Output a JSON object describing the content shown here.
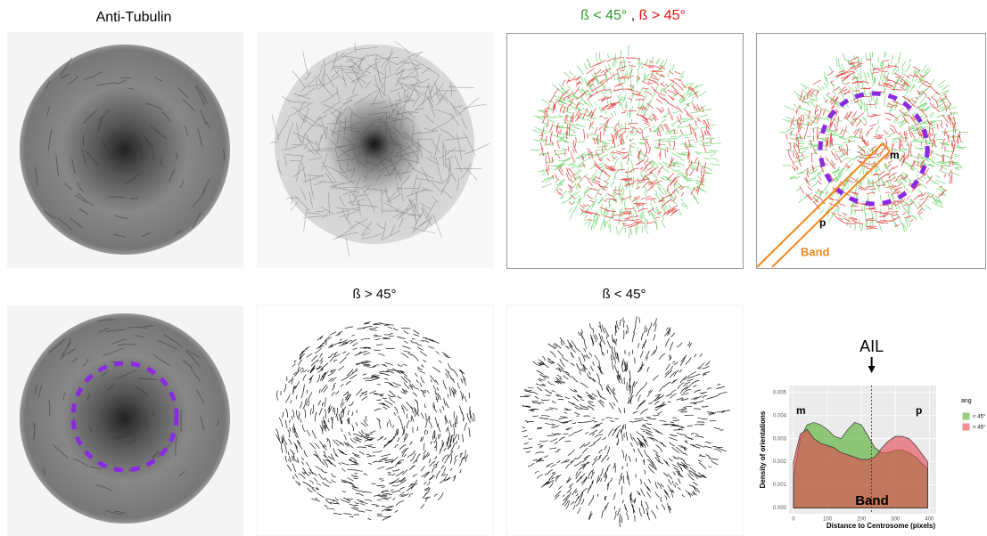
{
  "panels": {
    "anti_tubulin": "Anti-Tubulin",
    "top_title": {
      "lt": "ß < 45°",
      "sep": ",",
      "gt": "ß > 45°"
    },
    "labels": {
      "m": "m",
      "p": "p",
      "band": "Band"
    },
    "bottom_titles": [
      "ß > 45°",
      "ß < 45°"
    ]
  },
  "chart_data": {
    "type": "area",
    "xlabel": "Distance to Centrosome (pixels)",
    "ylabel": "Density of orientations",
    "x": [
      0,
      20,
      40,
      60,
      80,
      100,
      120,
      140,
      160,
      180,
      200,
      220,
      240,
      260,
      280,
      300,
      320,
      340,
      360,
      380,
      395
    ],
    "series": [
      {
        "name": "< 45°",
        "color": "#4dac26",
        "values": [
          0.0013,
          0.003,
          0.0036,
          0.0037,
          0.0036,
          0.0034,
          0.0031,
          0.003,
          0.0034,
          0.0037,
          0.0036,
          0.0031,
          0.0026,
          0.0024,
          0.0024,
          0.0025,
          0.0025,
          0.0024,
          0.0022,
          0.0019,
          0.0017
        ]
      },
      {
        "name": "> 45°",
        "color": "#e4434d",
        "values": [
          0.002,
          0.0032,
          0.0034,
          0.003,
          0.0028,
          0.0027,
          0.0026,
          0.0024,
          0.0023,
          0.0022,
          0.0021,
          0.0021,
          0.0022,
          0.0026,
          0.0029,
          0.0031,
          0.0031,
          0.003,
          0.0027,
          0.0023,
          0.002
        ]
      }
    ],
    "xlim": [
      -13,
      420
    ],
    "xticks": [
      0,
      100,
      200,
      300,
      400
    ],
    "ylim": [
      -0.00025,
      0.0053
    ],
    "yticks": [
      {
        "value": 0,
        "label": "0.000"
      },
      {
        "value": 0.001,
        "label": "0.001"
      },
      {
        "value": 0.002,
        "label": "0.002"
      },
      {
        "value": 0.003,
        "label": "0.003"
      },
      {
        "value": 0.004,
        "label": "0.004"
      },
      {
        "value": 0.005,
        "label": "0.005"
      }
    ],
    "grid": true,
    "legend_title": "ang",
    "legend": "right",
    "annotations": [
      {
        "text": "AIL",
        "x": 230
      }
    ],
    "region_labels": {
      "left": "m",
      "right": "p",
      "bottom": "Band"
    }
  }
}
